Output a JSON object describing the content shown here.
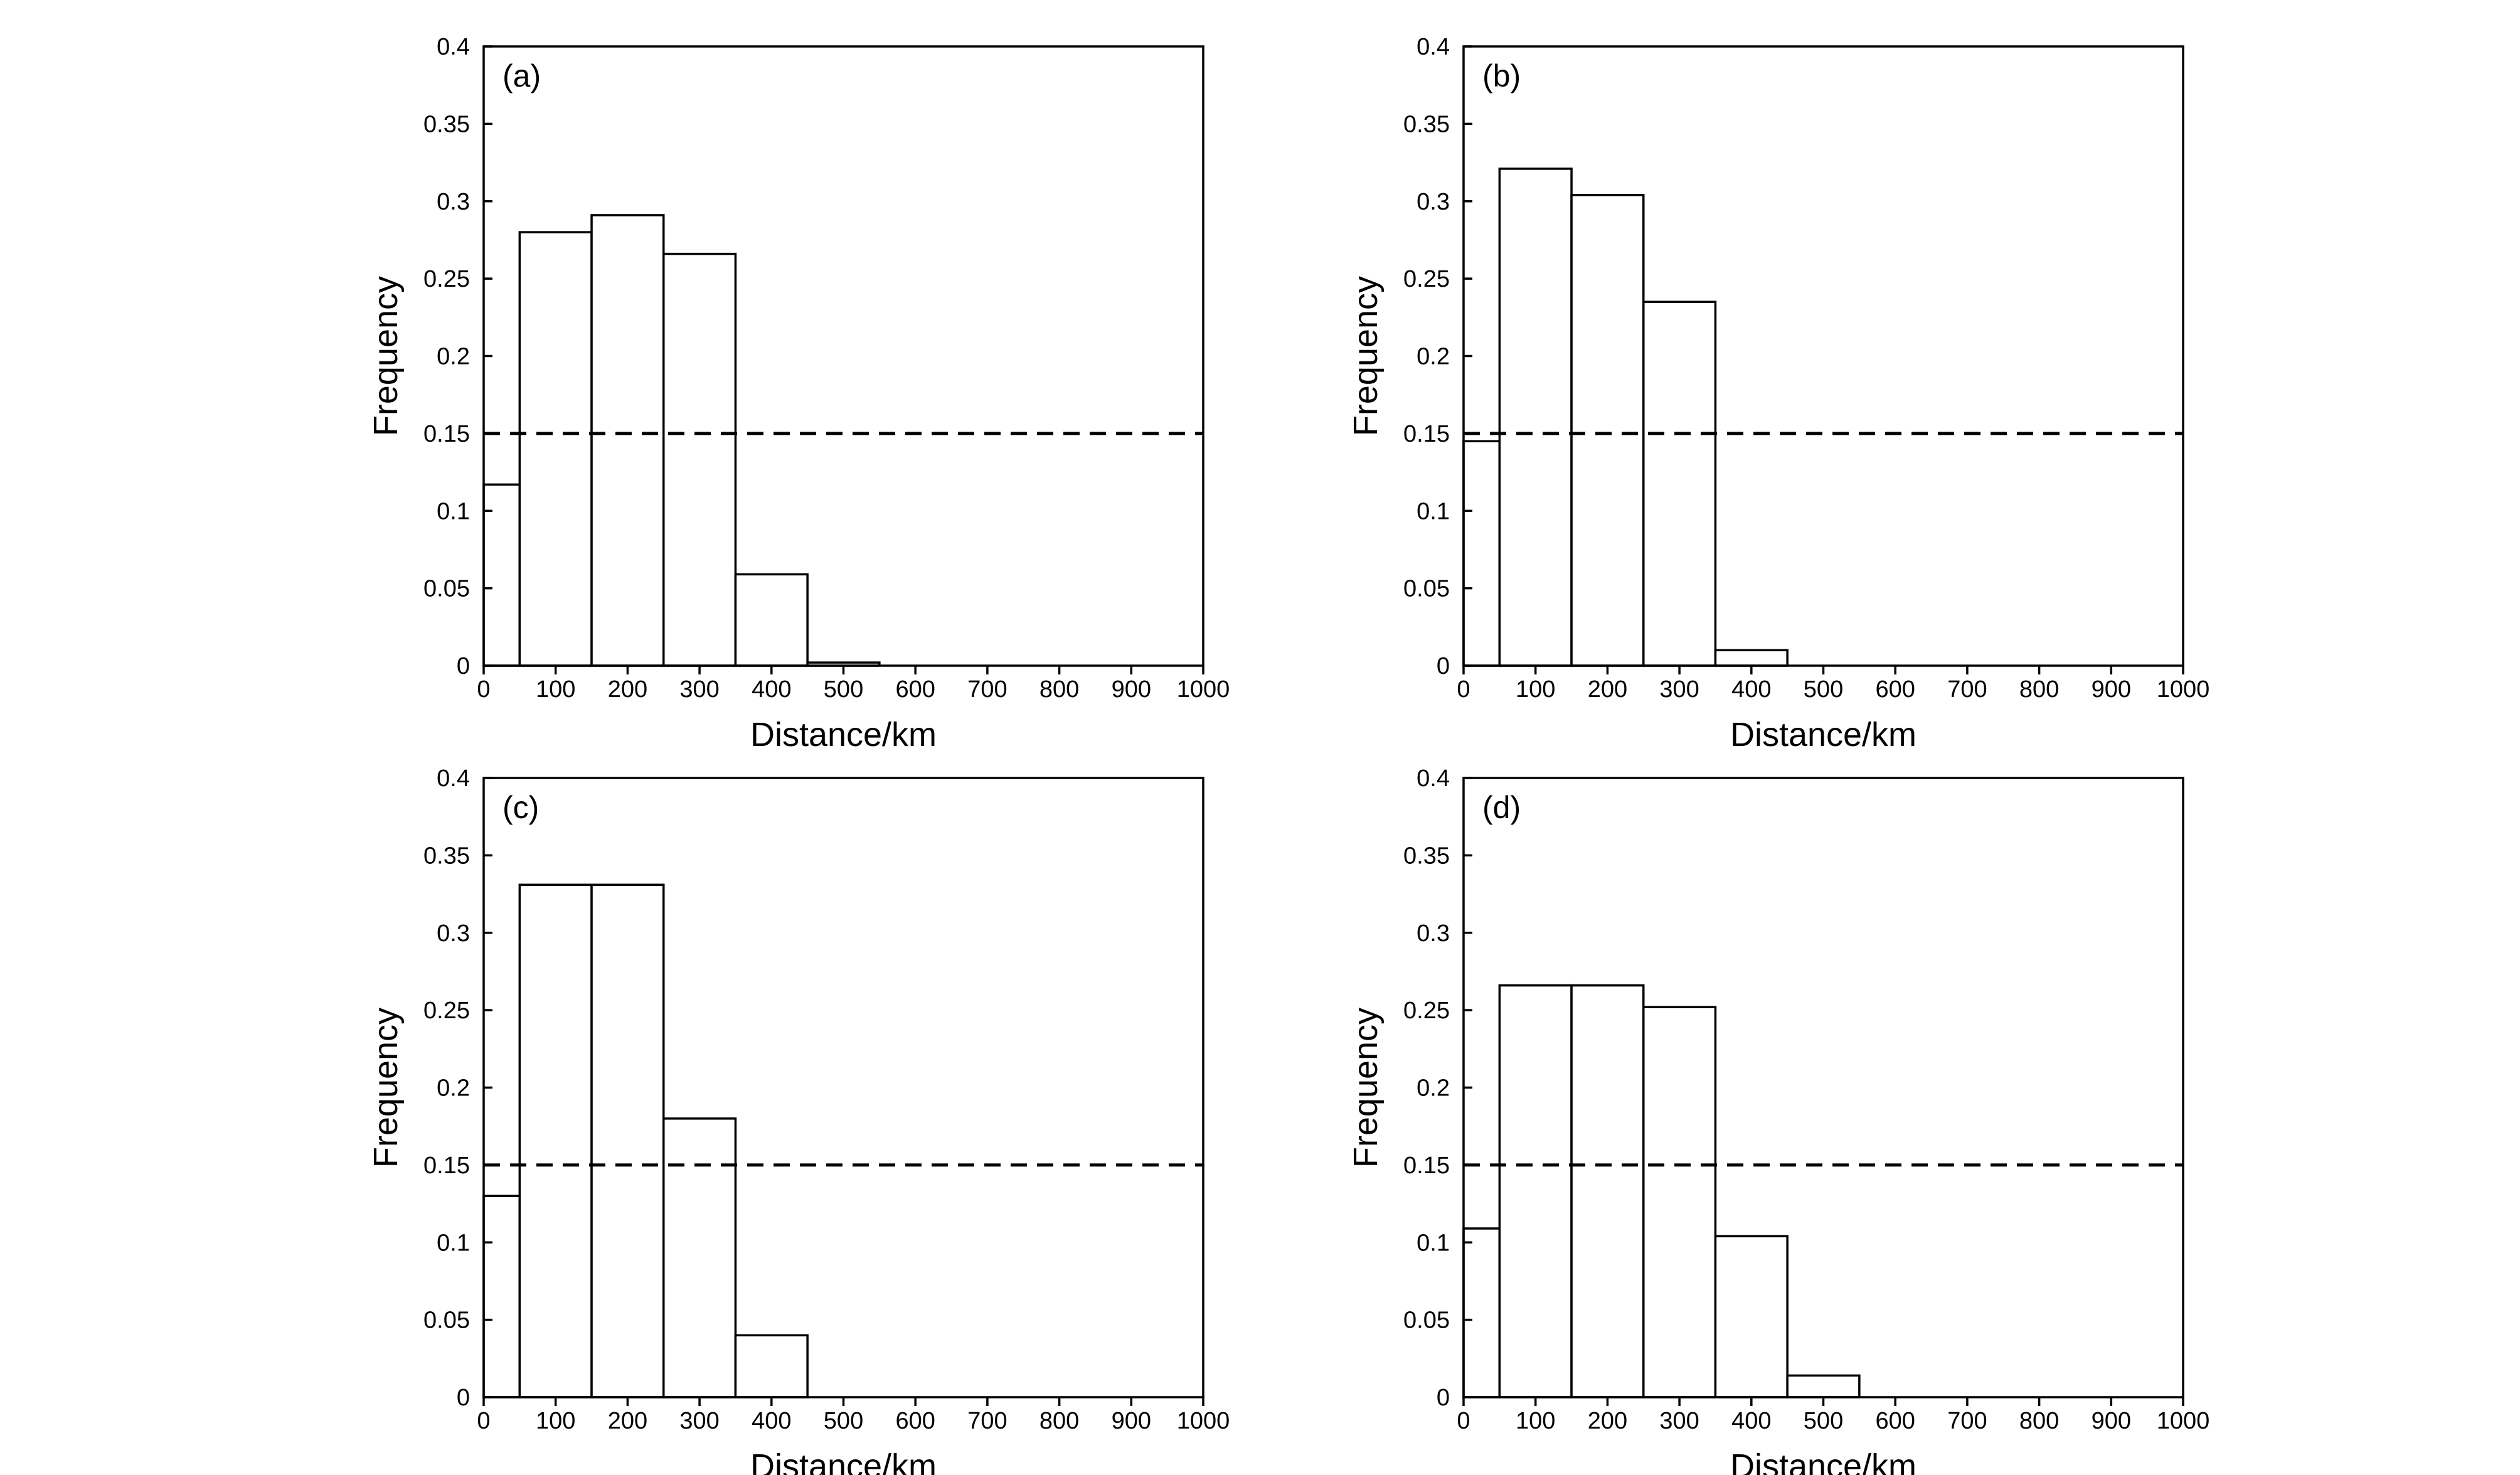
{
  "chart_data": [
    {
      "type": "bar",
      "label": "(a)",
      "xlabel": "Distance/km",
      "ylabel": "Frequency",
      "xlim": [
        0,
        1000
      ],
      "ylim": [
        0,
        0.4
      ],
      "xticks": [
        0,
        100,
        200,
        300,
        400,
        500,
        600,
        700,
        800,
        900,
        1000
      ],
      "yticks": [
        "0",
        "0.05",
        "0.1",
        "0.15",
        "0.2",
        "0.25",
        "0.3",
        "0.35",
        "0.4"
      ],
      "bin_width": 100,
      "bins": [
        {
          "x0": 0,
          "x1": 50,
          "value": 0.117
        },
        {
          "x0": 50,
          "x1": 150,
          "value": 0.28
        },
        {
          "x0": 150,
          "x1": 250,
          "value": 0.291
        },
        {
          "x0": 250,
          "x1": 350,
          "value": 0.266
        },
        {
          "x0": 350,
          "x1": 450,
          "value": 0.059
        },
        {
          "x0": 450,
          "x1": 550,
          "value": 0.002
        }
      ],
      "reference_line": 0.15
    },
    {
      "type": "bar",
      "label": "(b)",
      "xlabel": "Distance/km",
      "ylabel": "Frequency",
      "xlim": [
        0,
        1000
      ],
      "ylim": [
        0,
        0.4
      ],
      "xticks": [
        0,
        100,
        200,
        300,
        400,
        500,
        600,
        700,
        800,
        900,
        1000
      ],
      "yticks": [
        "0",
        "0.05",
        "0.1",
        "0.15",
        "0.2",
        "0.25",
        "0.3",
        "0.35",
        "0.4"
      ],
      "bin_width": 100,
      "bins": [
        {
          "x0": 0,
          "x1": 50,
          "value": 0.145
        },
        {
          "x0": 50,
          "x1": 150,
          "value": 0.321
        },
        {
          "x0": 150,
          "x1": 250,
          "value": 0.304
        },
        {
          "x0": 250,
          "x1": 350,
          "value": 0.235
        },
        {
          "x0": 350,
          "x1": 450,
          "value": 0.01
        }
      ],
      "reference_line": 0.15
    },
    {
      "type": "bar",
      "label": "(c)",
      "xlabel": "Distance/km",
      "ylabel": "Frequency",
      "xlim": [
        0,
        1000
      ],
      "ylim": [
        0,
        0.4
      ],
      "xticks": [
        0,
        100,
        200,
        300,
        400,
        500,
        600,
        700,
        800,
        900,
        1000
      ],
      "yticks": [
        "0",
        "0.05",
        "0.1",
        "0.15",
        "0.2",
        "0.25",
        "0.3",
        "0.35",
        "0.4"
      ],
      "bin_width": 100,
      "bins": [
        {
          "x0": 0,
          "x1": 50,
          "value": 0.13
        },
        {
          "x0": 50,
          "x1": 150,
          "value": 0.331
        },
        {
          "x0": 150,
          "x1": 250,
          "value": 0.331
        },
        {
          "x0": 250,
          "x1": 350,
          "value": 0.18
        },
        {
          "x0": 350,
          "x1": 450,
          "value": 0.04
        }
      ],
      "reference_line": 0.15
    },
    {
      "type": "bar",
      "label": "(d)",
      "xlabel": "Distance/km",
      "ylabel": "Frequency",
      "xlim": [
        0,
        1000
      ],
      "ylim": [
        0,
        0.4
      ],
      "xticks": [
        0,
        100,
        200,
        300,
        400,
        500,
        600,
        700,
        800,
        900,
        1000
      ],
      "yticks": [
        "0",
        "0.05",
        "0.1",
        "0.15",
        "0.2",
        "0.25",
        "0.3",
        "0.35",
        "0.4"
      ],
      "bin_width": 100,
      "bins": [
        {
          "x0": 0,
          "x1": 50,
          "value": 0.109
        },
        {
          "x0": 50,
          "x1": 150,
          "value": 0.266
        },
        {
          "x0": 150,
          "x1": 250,
          "value": 0.266
        },
        {
          "x0": 250,
          "x1": 350,
          "value": 0.252
        },
        {
          "x0": 350,
          "x1": 450,
          "value": 0.104
        },
        {
          "x0": 450,
          "x1": 550,
          "value": 0.014
        }
      ],
      "reference_line": 0.15
    }
  ]
}
